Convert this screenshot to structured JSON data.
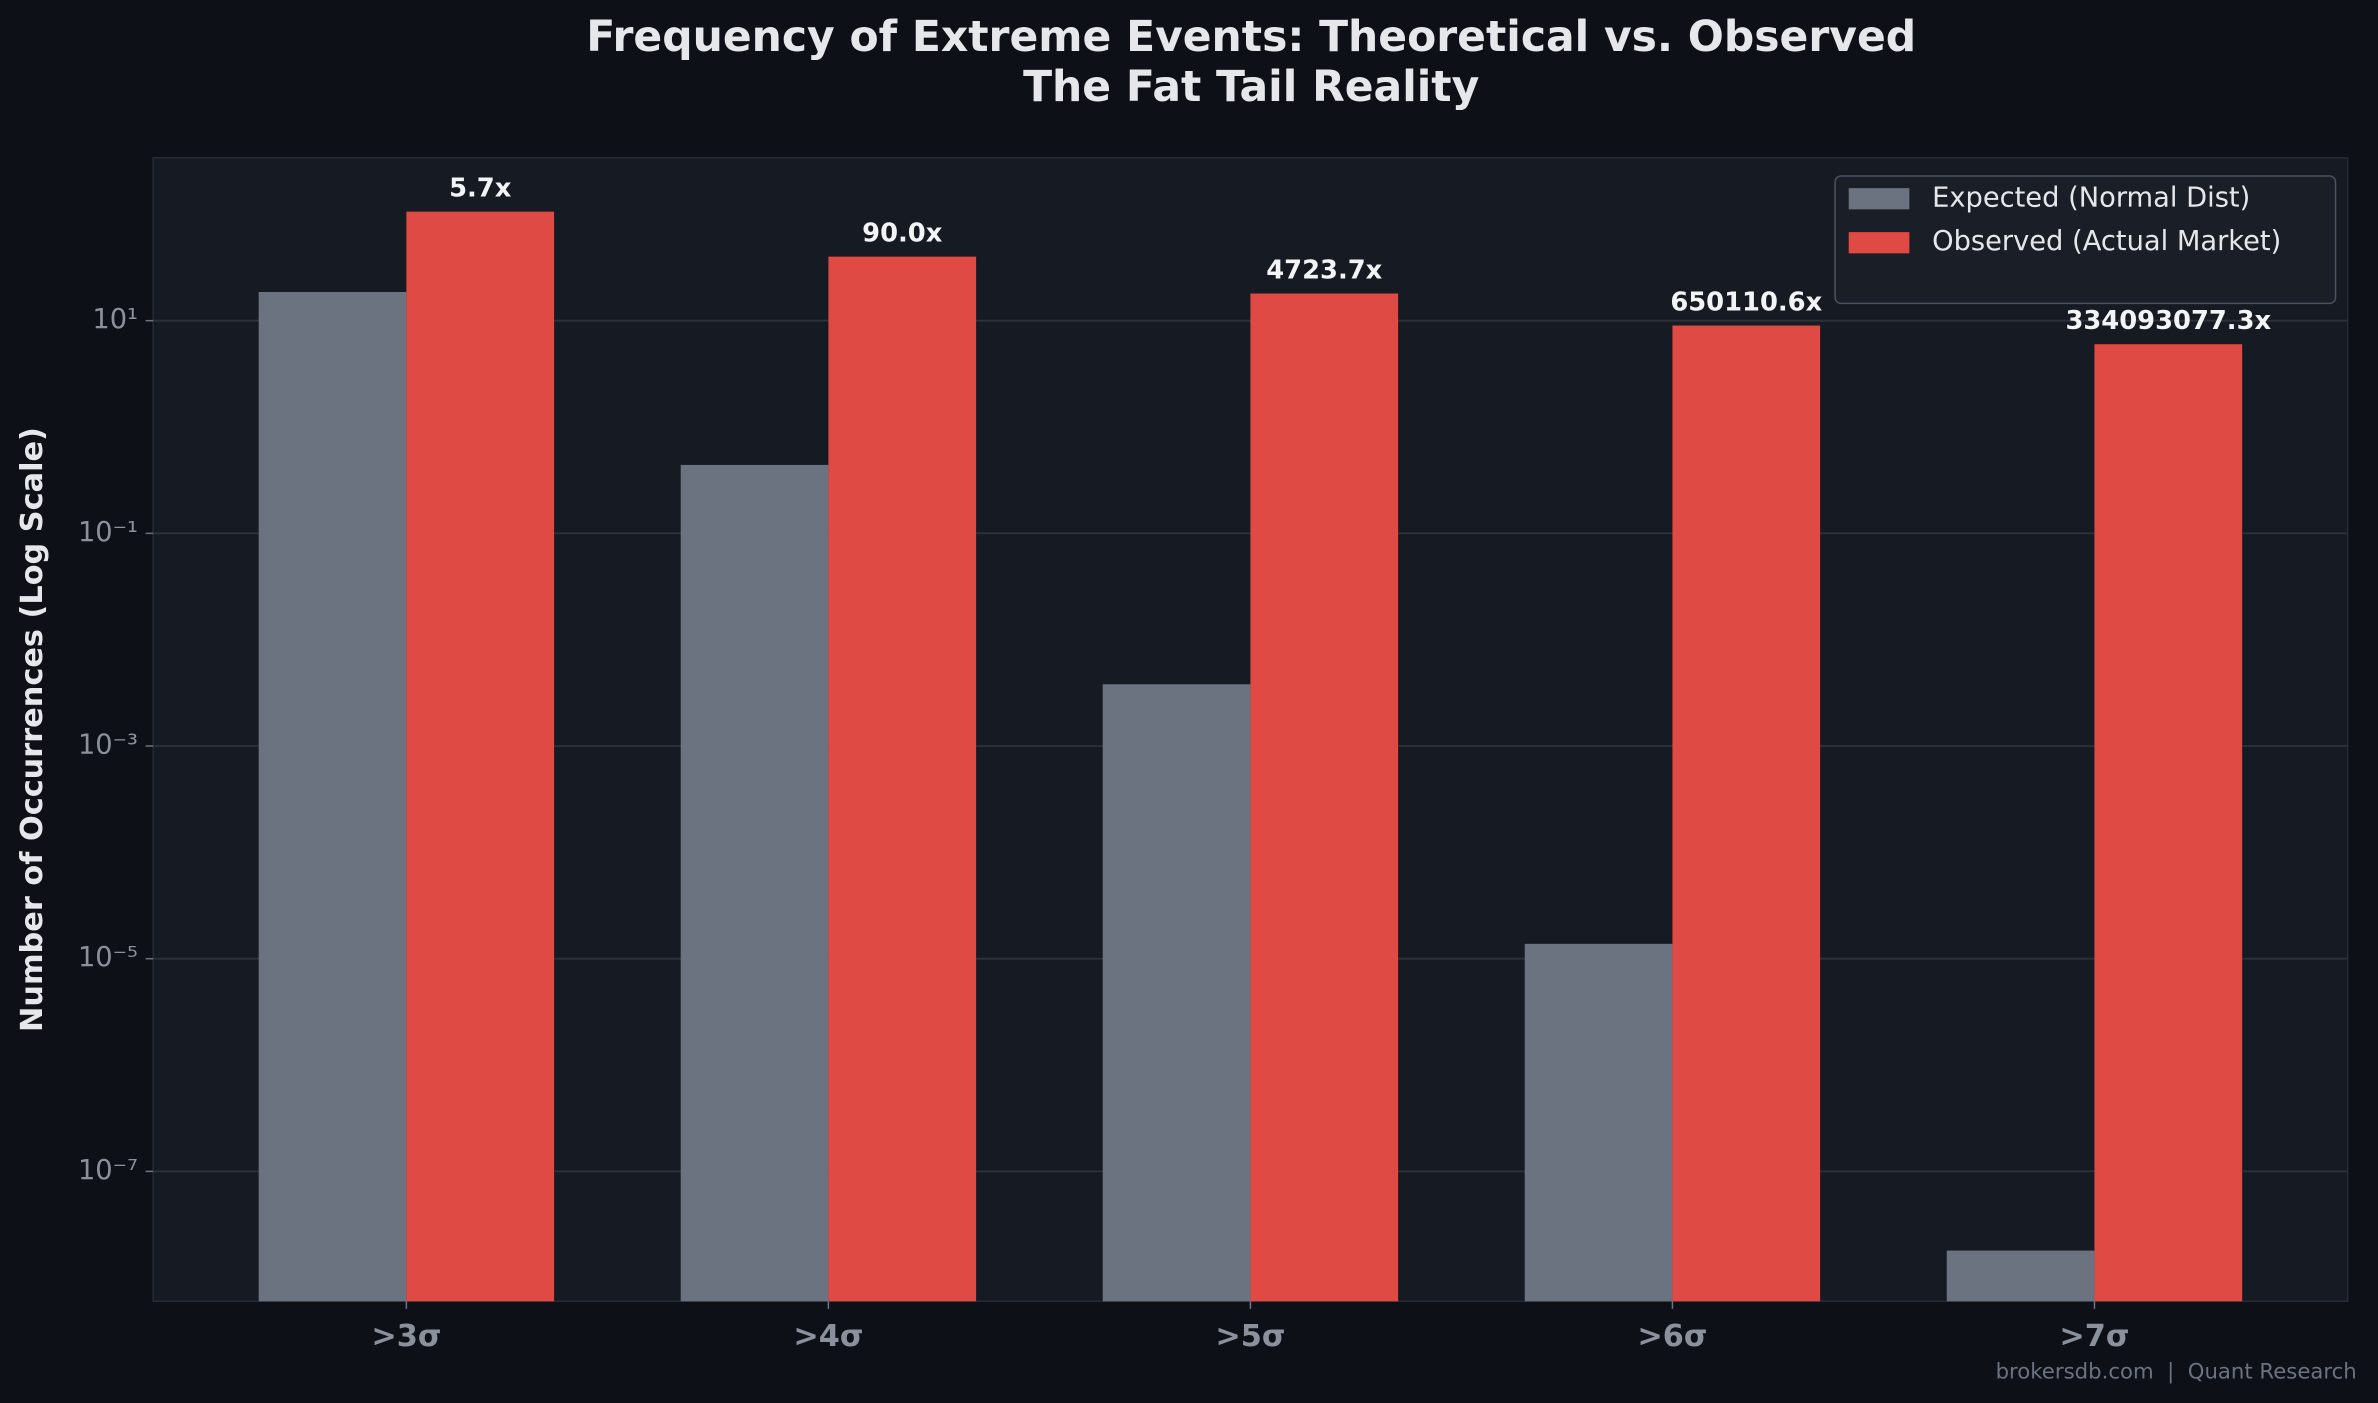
{
  "chart_data": {
    "type": "bar",
    "title": "Frequency of Extreme Events: Theoretical vs. Observed",
    "subtitle": "The Fat Tail Reality",
    "y_label": "Number of Occurrences (Log Scale)",
    "categories": [
      ">3σ",
      ">4σ",
      ">5σ",
      ">6σ",
      ">7σ"
    ],
    "series": [
      {
        "name": "Expected (Normal Dist)",
        "color": "#6b7280",
        "values": [
          18.6,
          0.44,
          0.00381,
          1.38e-05,
          1.8e-08
        ]
      },
      {
        "name": "Observed (Actual Market)",
        "color": "#e04a45",
        "values": [
          106,
          40,
          18,
          9,
          6
        ]
      }
    ],
    "annotations": [
      "5.7x",
      "90.0x",
      "4723.7x",
      "650110.6x",
      "334093077.3x"
    ],
    "log_scale": true,
    "ylim": [
      6e-09,
      340
    ],
    "yticks": [
      {
        "value": 10,
        "label": "10¹"
      },
      {
        "value": 0.1,
        "label": "10⁻¹"
      },
      {
        "value": 0.001,
        "label": "10⁻³"
      },
      {
        "value": 1e-05,
        "label": "10⁻⁵"
      },
      {
        "value": 1e-07,
        "label": "10⁻⁷"
      }
    ],
    "grid": true,
    "legend_position": "upper right",
    "footer": "brokersdb.com  |  Quant Research"
  }
}
